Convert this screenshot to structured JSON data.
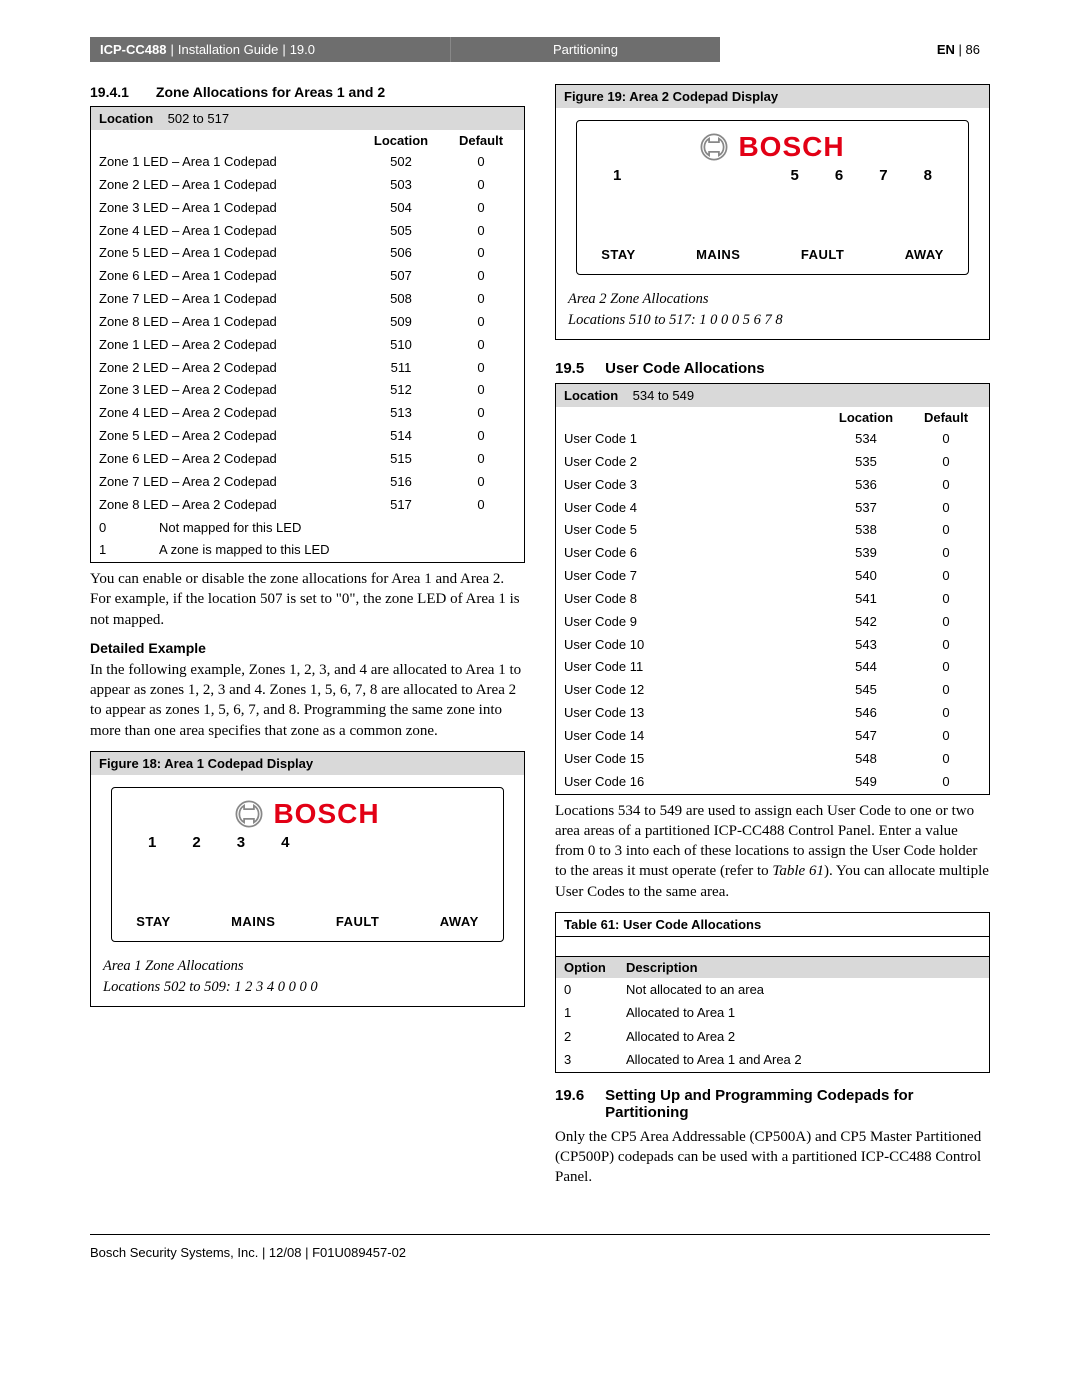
{
  "header": {
    "product": "ICP-CC488",
    "divider": " | ",
    "guide": "Installation Guide",
    "rev": "19.0",
    "section": "Partitioning",
    "lang": "EN",
    "page": "86"
  },
  "left": {
    "sec1941_num": "19.4.1",
    "sec1941_title": "Zone Allocations for Areas 1 and 2",
    "tbl_location_label": "Location",
    "tbl_location_range": "502 to 517",
    "col_location": "Location",
    "col_default": "Default",
    "rows": [
      {
        "d": "Zone 1 LED – Area 1 Codepad",
        "l": "502",
        "v": "0"
      },
      {
        "d": "Zone 2 LED – Area 1 Codepad",
        "l": "503",
        "v": "0"
      },
      {
        "d": "Zone 3 LED – Area 1 Codepad",
        "l": "504",
        "v": "0"
      },
      {
        "d": "Zone 4 LED – Area 1 Codepad",
        "l": "505",
        "v": "0"
      },
      {
        "d": "Zone 5 LED – Area 1 Codepad",
        "l": "506",
        "v": "0"
      },
      {
        "d": "Zone 6 LED – Area 1 Codepad",
        "l": "507",
        "v": "0"
      },
      {
        "d": "Zone 7 LED – Area 1 Codepad",
        "l": "508",
        "v": "0"
      },
      {
        "d": "Zone 8 LED – Area 1 Codepad",
        "l": "509",
        "v": "0"
      },
      {
        "d": "Zone 1 LED – Area 2 Codepad",
        "l": "510",
        "v": "0"
      },
      {
        "d": "Zone 2 LED – Area 2 Codepad",
        "l": "511",
        "v": "0"
      },
      {
        "d": "Zone 3 LED – Area 2 Codepad",
        "l": "512",
        "v": "0"
      },
      {
        "d": "Zone 4 LED – Area 2 Codepad",
        "l": "513",
        "v": "0"
      },
      {
        "d": "Zone 5 LED – Area 2 Codepad",
        "l": "514",
        "v": "0"
      },
      {
        "d": "Zone 6 LED – Area 2 Codepad",
        "l": "515",
        "v": "0"
      },
      {
        "d": "Zone 7 LED – Area 2 Codepad",
        "l": "516",
        "v": "0"
      },
      {
        "d": "Zone 8 LED – Area 2 Codepad",
        "l": "517",
        "v": "0"
      }
    ],
    "legend": [
      {
        "k": "0",
        "t": "Not mapped for this LED"
      },
      {
        "k": "1",
        "t": "A zone is mapped to this LED"
      }
    ],
    "para1": "You can enable or disable the zone allocations for Area 1 and Area 2.  For example, if the location 507 is set to \"0\", the zone LED of Area 1 is not mapped.",
    "detailed_heading": "Detailed Example",
    "para2": "In the following example, Zones 1, 2, 3, and 4 are allocated to Area 1 to appear as zones 1, 2, 3 and 4. Zones 1, 5, 6, 7, 8 are allocated to Area 2 to appear as zones 1, 5, 6, 7, and 8. Programming the same zone into more than one area specifies that zone as a common zone.",
    "fig18_title": "Figure 18:  Area 1 Codepad Display",
    "fig18_nums": [
      "1",
      "2",
      "3",
      "4",
      "",
      "",
      "",
      ""
    ],
    "fig18_cap1": "Area 1 Zone Allocations",
    "fig18_cap2": "Locations 502 to 509: 1  2  3  4  0  0  0  0"
  },
  "right": {
    "fig19_title": "Figure 19:  Area 2 Codepad Display",
    "fig19_nums": [
      "1",
      "",
      "",
      "",
      "5",
      "6",
      "7",
      "8"
    ],
    "fig19_cap1": "Area 2 Zone Allocations",
    "fig19_cap2": "Locations 510 to 517: 1  0  0  0  5  6  7  8",
    "sec195_num": "19.5",
    "sec195_title": "User Code Allocations",
    "tbl2_location_label": "Location",
    "tbl2_location_range": "534 to 549",
    "col_location": "Location",
    "col_default": "Default",
    "rows": [
      {
        "d": "User Code 1",
        "l": "534",
        "v": "0"
      },
      {
        "d": "User Code 2",
        "l": "535",
        "v": "0"
      },
      {
        "d": "User Code 3",
        "l": "536",
        "v": "0"
      },
      {
        "d": "User Code 4",
        "l": "537",
        "v": "0"
      },
      {
        "d": "User Code 5",
        "l": "538",
        "v": "0"
      },
      {
        "d": "User Code 6",
        "l": "539",
        "v": "0"
      },
      {
        "d": "User Code 7",
        "l": "540",
        "v": "0"
      },
      {
        "d": "User Code 8",
        "l": "541",
        "v": "0"
      },
      {
        "d": "User Code 9",
        "l": "542",
        "v": "0"
      },
      {
        "d": "User Code 10",
        "l": "543",
        "v": "0"
      },
      {
        "d": "User Code 11",
        "l": "544",
        "v": "0"
      },
      {
        "d": "User Code 12",
        "l": "545",
        "v": "0"
      },
      {
        "d": "User Code 13",
        "l": "546",
        "v": "0"
      },
      {
        "d": "User Code 14",
        "l": "547",
        "v": "0"
      },
      {
        "d": "User Code 15",
        "l": "548",
        "v": "0"
      },
      {
        "d": "User Code 16",
        "l": "549",
        "v": "0"
      }
    ],
    "para3a": "Locations 534 to 549 are used to assign each User Code to one or two area areas of a partitioned ICP-CC488 Control Panel. Enter a value from 0 to 3 into each of these locations to assign the User Code holder to the areas it must operate (refer to ",
    "para3ref": "Table 61",
    "para3b": "). You can allocate multiple User Codes to the same area.",
    "t61_title": "Table 61:   User Code Allocations",
    "t61_col1": "Option",
    "t61_col2": "Description",
    "t61_rows": [
      {
        "o": "0",
        "d": "Not allocated to an area"
      },
      {
        "o": "1",
        "d": "Allocated to Area 1"
      },
      {
        "o": "2",
        "d": "Allocated to Area 2"
      },
      {
        "o": "3",
        "d": "Allocated to Area 1 and Area 2"
      }
    ],
    "sec196_num": "19.6",
    "sec196_title": "Setting Up and Programming Codepads for Partitioning",
    "para4": "Only the CP5 Area Addressable (CP500A) and CP5 Master Partitioned (CP500P) codepads can be used with a partitioned ICP-CC488 Control Panel."
  },
  "codepad": {
    "brand": "BOSCH",
    "words": [
      "STAY",
      "MAINS",
      "FAULT",
      "AWAY"
    ]
  },
  "footer": "Bosch Security Systems, Inc. | 12/08 | F01U089457-02"
}
